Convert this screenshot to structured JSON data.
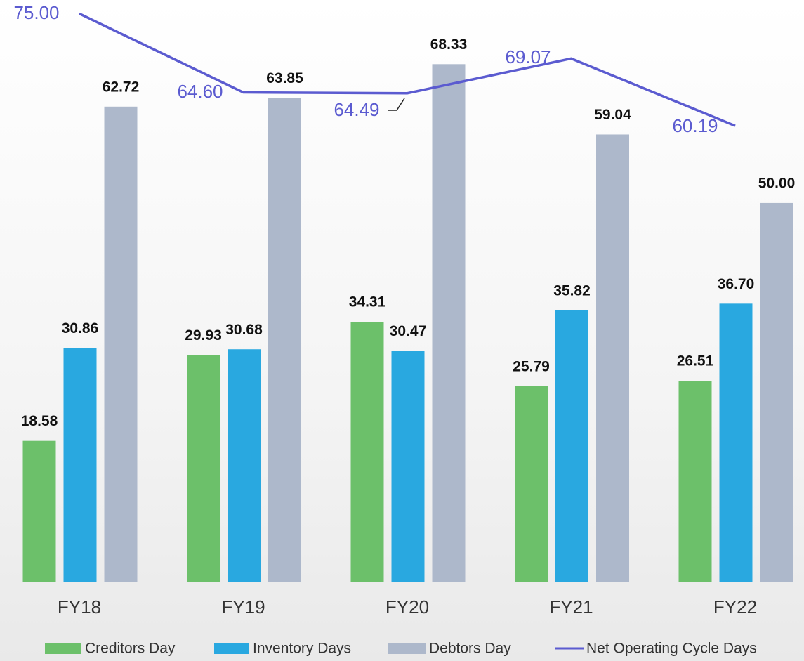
{
  "chart_data": {
    "type": "bar",
    "categories": [
      "FY18",
      "FY19",
      "FY20",
      "FY21",
      "FY22"
    ],
    "ylim": [
      0,
      76.8
    ],
    "series": [
      {
        "name": "Creditors Day",
        "type": "bar",
        "color": "#6cc06a",
        "values": [
          18.58,
          29.93,
          34.31,
          25.79,
          26.51
        ],
        "value_labels": [
          "18.58",
          "29.93",
          "34.31",
          "25.79",
          "26.51"
        ]
      },
      {
        "name": "Inventory Days",
        "type": "bar",
        "color": "#29a8e0",
        "values": [
          30.86,
          30.68,
          30.47,
          35.82,
          36.7
        ],
        "value_labels": [
          "30.86",
          "30.68",
          "30.47",
          "35.82",
          "36.70"
        ]
      },
      {
        "name": "Debtors Day",
        "type": "bar",
        "color": "#adb8cb",
        "values": [
          62.72,
          63.85,
          68.33,
          59.04,
          50
        ],
        "value_labels": [
          "62.72",
          "63.85",
          "68.33",
          "59.04",
          "50.00"
        ]
      },
      {
        "name": "Net Operating Cycle Days",
        "type": "line",
        "color": "#5b5bd0",
        "values": [
          75,
          64.6,
          64.49,
          69.07,
          60.19
        ],
        "value_labels": [
          "75.00",
          "64.60",
          "64.49",
          "69.07",
          "60.19"
        ]
      }
    ]
  }
}
